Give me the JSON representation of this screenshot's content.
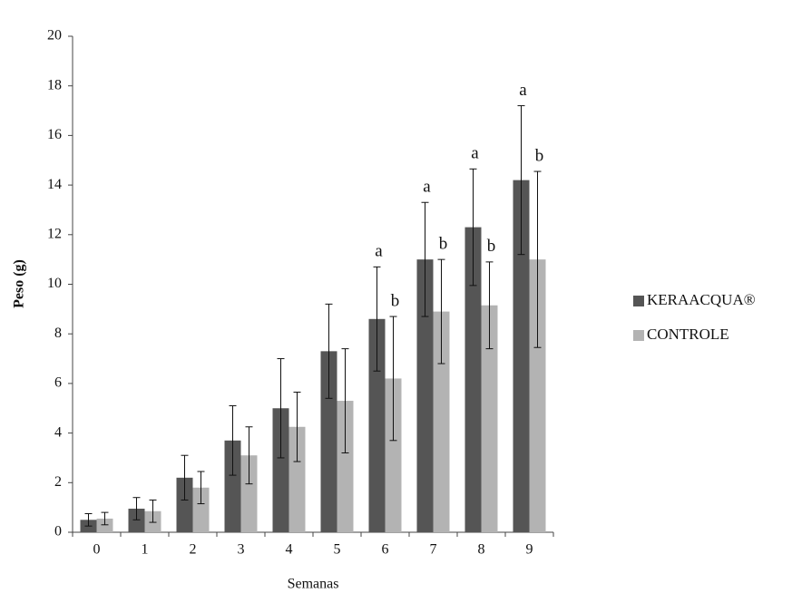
{
  "chart_data": {
    "type": "bar",
    "y_label": "Peso (g)",
    "x_label": "Semanas",
    "categories": [
      "0",
      "1",
      "2",
      "3",
      "4",
      "5",
      "6",
      "7",
      "8",
      "9"
    ],
    "series": [
      {
        "name": "KERAACQUA®",
        "color": "#555555",
        "values": [
          0.5,
          0.95,
          2.2,
          3.7,
          5.0,
          7.3,
          8.6,
          11.0,
          12.3,
          14.2
        ],
        "errors": [
          0.25,
          0.45,
          0.9,
          1.4,
          2.0,
          1.9,
          2.1,
          2.3,
          2.35,
          3.0
        ],
        "letters": [
          null,
          null,
          null,
          null,
          null,
          null,
          "a",
          "a",
          "a",
          "a"
        ]
      },
      {
        "name": "CONTROLE",
        "color": "#b3b3b3",
        "values": [
          0.55,
          0.85,
          1.8,
          3.1,
          4.25,
          5.3,
          6.2,
          8.9,
          9.15,
          11.0
        ],
        "errors": [
          0.25,
          0.45,
          0.65,
          1.15,
          1.4,
          2.1,
          2.5,
          2.1,
          1.75,
          3.55
        ],
        "letters": [
          null,
          null,
          null,
          null,
          null,
          null,
          "b",
          "b",
          "b",
          "b"
        ]
      }
    ],
    "ylim": [
      0,
      20
    ],
    "yticks": [
      0,
      2,
      4,
      6,
      8,
      10,
      12,
      14,
      16,
      18,
      20
    ],
    "legend": "right"
  }
}
